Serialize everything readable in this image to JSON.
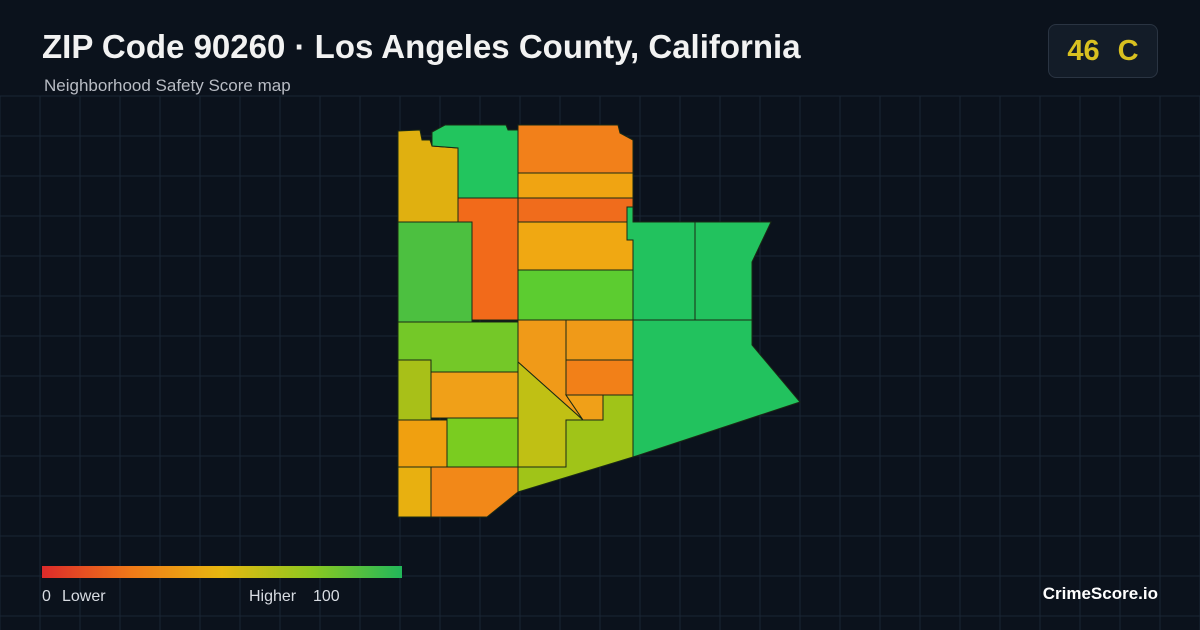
{
  "header": {
    "title": "ZIP Code 90260 · Los Angeles County, California",
    "subtitle": "Neighborhood Safety Score map"
  },
  "score": {
    "value": 46,
    "grade": "C"
  },
  "legend": {
    "min": 0,
    "min_label": "Lower",
    "max_label": "Higher",
    "max": 100
  },
  "brand": "CrimeScore.io"
}
